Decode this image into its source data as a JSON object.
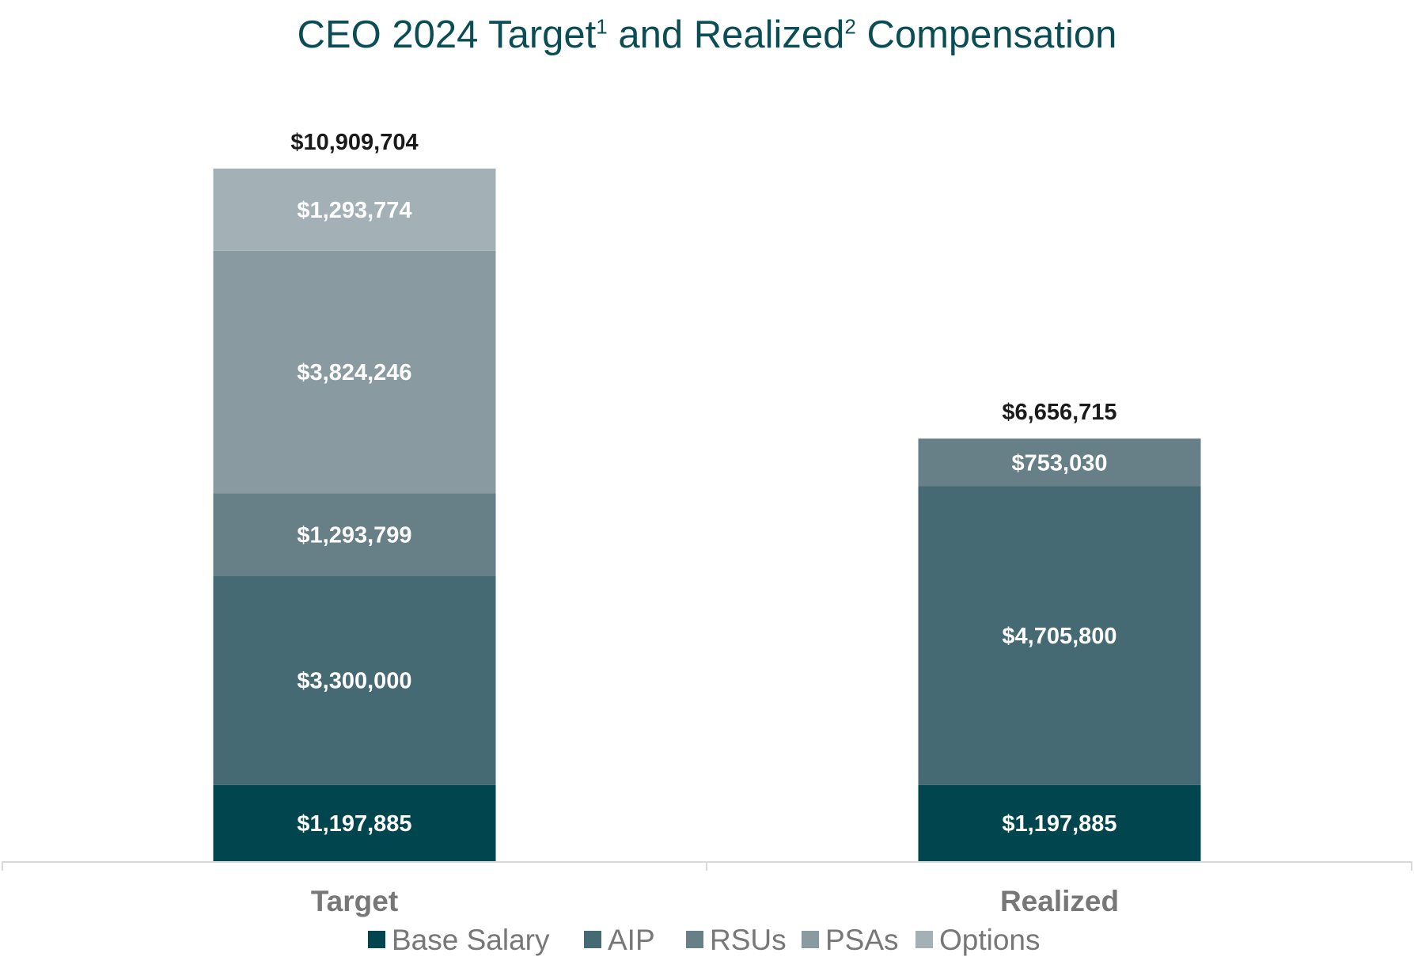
{
  "chart_data": {
    "type": "bar",
    "stacked": true,
    "title": {
      "parts": [
        {
          "text": "CEO 2024 Target",
          "sup": false
        },
        {
          "text": "1",
          "sup": true
        },
        {
          "text": " and Realized",
          "sup": false
        },
        {
          "text": "2",
          "sup": true
        },
        {
          "text": " Compensation",
          "sup": false
        }
      ]
    },
    "categories": [
      "Target",
      "Realized"
    ],
    "series": [
      {
        "name": "Base Salary",
        "color": "#01464f",
        "values": [
          1197885,
          1197885
        ],
        "labels": [
          "$1,197,885",
          "$1,197,885"
        ]
      },
      {
        "name": "AIP",
        "color": "#466a73",
        "values": [
          3300000,
          4705800
        ],
        "labels": [
          "$3,300,000",
          "$4,705,800"
        ]
      },
      {
        "name": "RSUs",
        "color": "#677f87",
        "values": [
          1293799,
          753030
        ],
        "labels": [
          "$1,293,799",
          "$753,030"
        ]
      },
      {
        "name": "PSAs",
        "color": "#899ba1",
        "values": [
          3824246,
          0
        ],
        "labels": [
          "$3,824,246",
          ""
        ]
      },
      {
        "name": "Options",
        "color": "#a3b0b6",
        "values": [
          1293774,
          0
        ],
        "labels": [
          "$1,293,774",
          ""
        ]
      }
    ],
    "totals": [
      "$10,909,704",
      "$6,656,715"
    ],
    "ylim": [
      0,
      10909704
    ],
    "xlabel": "",
    "ylabel": "",
    "grid": false,
    "legend": "bottom-center"
  }
}
